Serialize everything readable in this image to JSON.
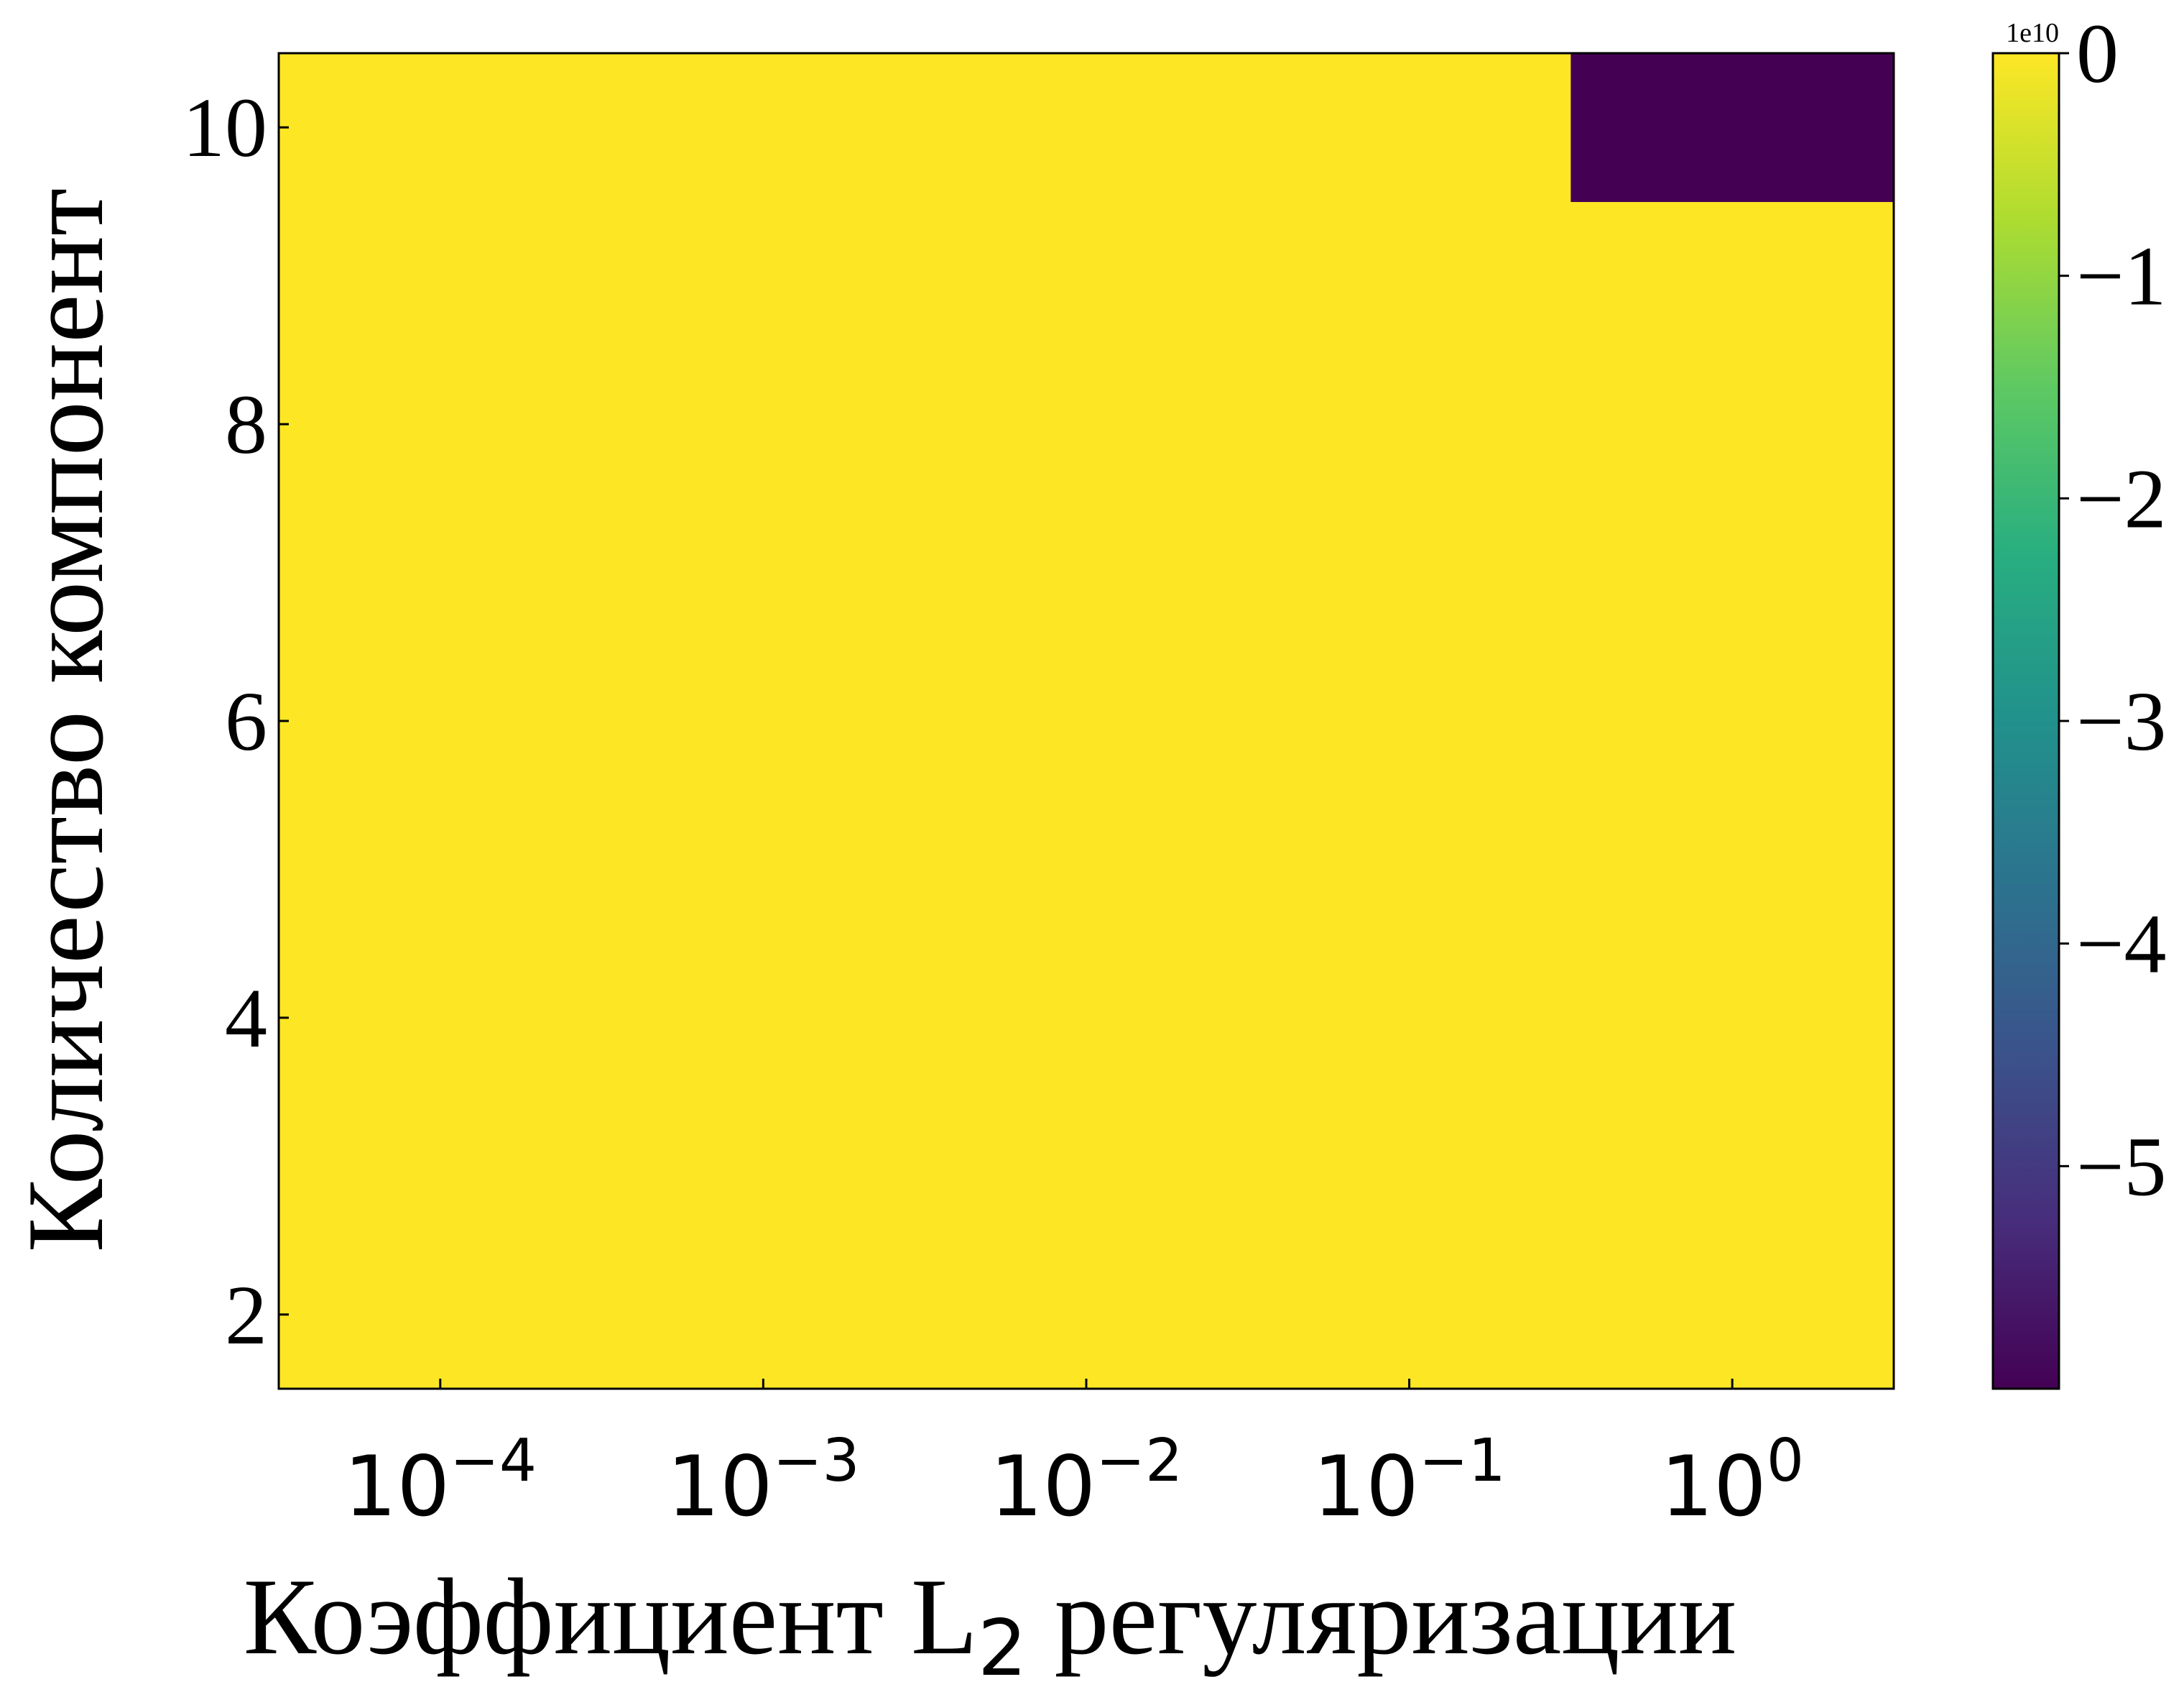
{
  "chart_data": {
    "type": "heatmap",
    "title": "",
    "xlabel": "Коэффициент L",
    "xlabel_subscript": "2",
    "xlabel_suffix": " регуляризации",
    "ylabel": "Количество компонент",
    "x": [
      0.0001,
      0.001,
      0.01,
      0.1,
      1
    ],
    "x_scale": "log",
    "x_tick_labels": [
      {
        "base": "10",
        "exp": "−4"
      },
      {
        "base": "10",
        "exp": "−3"
      },
      {
        "base": "10",
        "exp": "−2"
      },
      {
        "base": "10",
        "exp": "−1"
      },
      {
        "base": "10",
        "exp": "0"
      }
    ],
    "y": [
      2,
      3,
      4,
      5,
      6,
      7,
      8,
      9,
      10
    ],
    "y_ticks": [
      "2",
      "4",
      "6",
      "8",
      "10"
    ],
    "values": [
      [
        0,
        0,
        0,
        0,
        0
      ],
      [
        0,
        0,
        0,
        0,
        0
      ],
      [
        0,
        0,
        0,
        0,
        0
      ],
      [
        0,
        0,
        0,
        0,
        0
      ],
      [
        0,
        0,
        0,
        0,
        0
      ],
      [
        0,
        0,
        0,
        0,
        0
      ],
      [
        0,
        0,
        0,
        0,
        0
      ],
      [
        0,
        0,
        0,
        0,
        0
      ],
      [
        0,
        0,
        0,
        0,
        -60000000000
      ]
    ],
    "colorbar": {
      "colormap": "viridis",
      "min": -60000000000,
      "max": 0,
      "offset_label": "1e10",
      "ticks": [
        {
          "value": 0,
          "label": "0"
        },
        {
          "value": -10000000000,
          "label": "−1"
        },
        {
          "value": -20000000000,
          "label": "−2"
        },
        {
          "value": -30000000000,
          "label": "−3"
        },
        {
          "value": -40000000000,
          "label": "−4"
        },
        {
          "value": -50000000000,
          "label": "−5"
        }
      ]
    },
    "colors": {
      "max": "#fde725",
      "min": "#440154"
    },
    "grid": false
  }
}
